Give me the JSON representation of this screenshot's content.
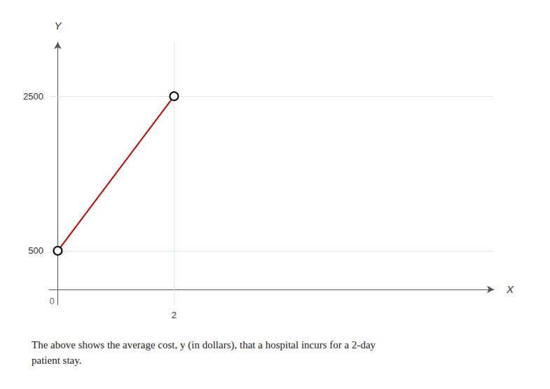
{
  "chart_data": {
    "type": "line",
    "x": [
      0,
      2
    ],
    "values": [
      500,
      2500
    ],
    "color": "#cc0000",
    "marker": "circle",
    "xlim": [
      -0.15,
      7.5
    ],
    "ylim": [
      -200,
      3200
    ],
    "xticks": [
      2
    ],
    "yticks": [
      500,
      2500
    ],
    "xlabel": "X",
    "ylabel": "Y",
    "grid": true,
    "annotations": [
      {
        "text": "0",
        "x": 0,
        "y": 0
      }
    ],
    "caption": "The above shows the average cost, y (in dollars), that a hospital incurs for a 2-day\npatient stay."
  }
}
